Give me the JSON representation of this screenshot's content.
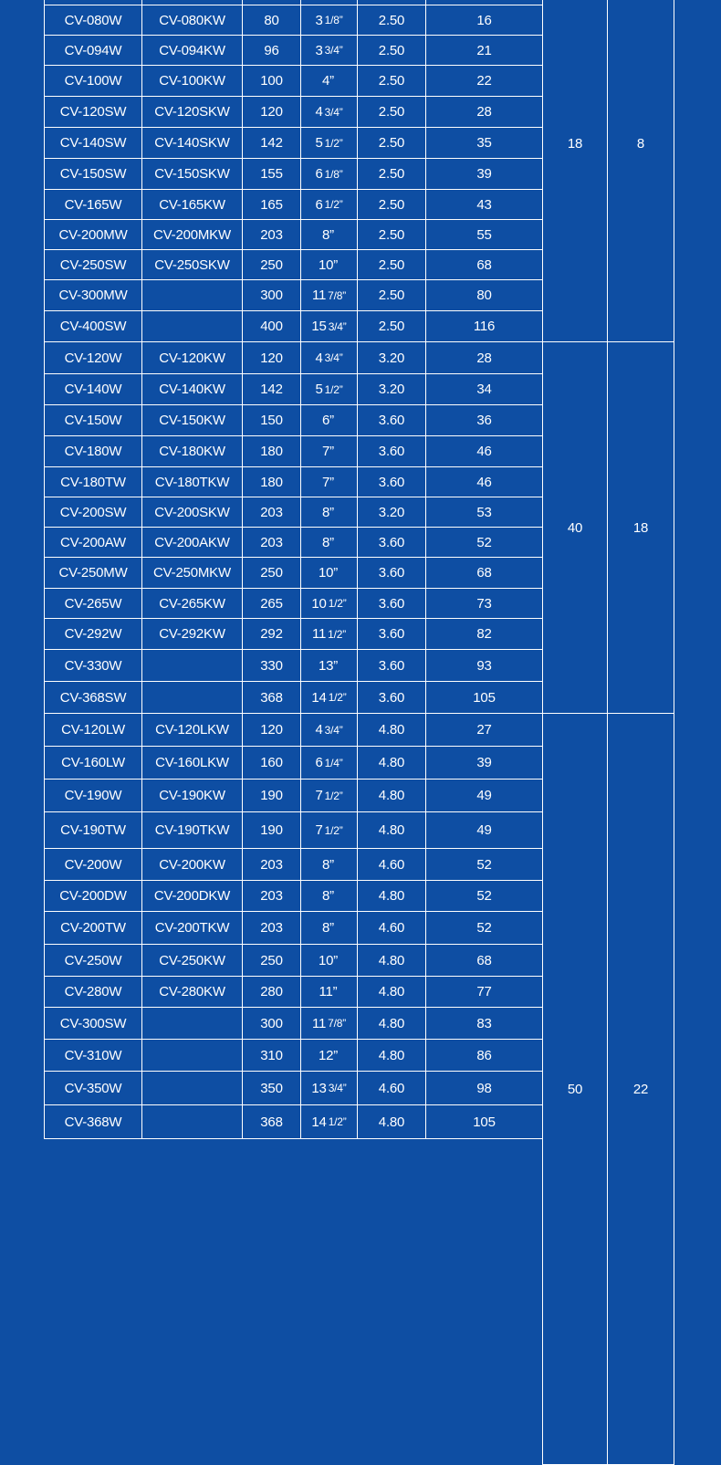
{
  "colors": {
    "background": "#0e4ea3",
    "grid": "#ffffff",
    "text": "#ffffff"
  },
  "groups": [
    {
      "merged_a": "18",
      "merged_b": "8",
      "rows": [
        {
          "model": "CV-080W",
          "model_k": "CV-080KW",
          "mm": "80",
          "inch": "3",
          "frac": "1/8”",
          "thick": "2.50",
          "qty": "16"
        },
        {
          "model": "CV-094W",
          "model_k": "CV-094KW",
          "mm": "96",
          "inch": "3",
          "frac": "3/4”",
          "thick": "2.50",
          "qty": "21"
        },
        {
          "model": "CV-100W",
          "model_k": "CV-100KW",
          "mm": "100",
          "inch": "4”",
          "frac": "",
          "thick": "2.50",
          "qty": "22"
        },
        {
          "model": "CV-120SW",
          "model_k": "CV-120SKW",
          "mm": "120",
          "inch": "4",
          "frac": "3/4”",
          "thick": "2.50",
          "qty": "28"
        },
        {
          "model": "CV-140SW",
          "model_k": "CV-140SKW",
          "mm": "142",
          "inch": "5",
          "frac": "1/2”",
          "thick": "2.50",
          "qty": "35"
        },
        {
          "model": "CV-150SW",
          "model_k": "CV-150SKW",
          "mm": "155",
          "inch": "6",
          "frac": "1/8”",
          "thick": "2.50",
          "qty": "39"
        },
        {
          "model": "CV-165W",
          "model_k": "CV-165KW",
          "mm": "165",
          "inch": "6",
          "frac": "1/2”",
          "thick": "2.50",
          "qty": "43"
        },
        {
          "model": "CV-200MW",
          "model_k": "CV-200MKW",
          "mm": "203",
          "inch": "8”",
          "frac": "",
          "thick": "2.50",
          "qty": "55"
        },
        {
          "model": "CV-250SW",
          "model_k": "CV-250SKW",
          "mm": "250",
          "inch": "10”",
          "frac": "",
          "thick": "2.50",
          "qty": "68"
        },
        {
          "model": "CV-300MW",
          "model_k": "",
          "mm": "300",
          "inch": "11",
          "frac": "7/8”",
          "thick": "2.50",
          "qty": "80"
        },
        {
          "model": "CV-400SW",
          "model_k": "",
          "mm": "400",
          "inch": "15",
          "frac": "3/4”",
          "thick": "2.50",
          "qty": "116"
        }
      ]
    },
    {
      "merged_a": "40",
      "merged_b": "18",
      "rows": [
        {
          "model": "CV-120W",
          "model_k": "CV-120KW",
          "mm": "120",
          "inch": "4",
          "frac": "3/4”",
          "thick": "3.20",
          "qty": "28"
        },
        {
          "model": "CV-140W",
          "model_k": "CV-140KW",
          "mm": "142",
          "inch": "5",
          "frac": "1/2”",
          "thick": "3.20",
          "qty": "34"
        },
        {
          "model": "CV-150W",
          "model_k": "CV-150KW",
          "mm": "150",
          "inch": "6”",
          "frac": "",
          "thick": "3.60",
          "qty": "36"
        },
        {
          "model": "CV-180W",
          "model_k": "CV-180KW",
          "mm": "180",
          "inch": "7”",
          "frac": "",
          "thick": "3.60",
          "qty": "46"
        },
        {
          "model": "CV-180TW",
          "model_k": "CV-180TKW",
          "mm": "180",
          "inch": "7”",
          "frac": "",
          "thick": "3.60",
          "qty": "46"
        },
        {
          "model": "CV-200SW",
          "model_k": "CV-200SKW",
          "mm": "203",
          "inch": "8”",
          "frac": "",
          "thick": "3.20",
          "qty": "53"
        },
        {
          "model": "CV-200AW",
          "model_k": "CV-200AKW",
          "mm": "203",
          "inch": "8”",
          "frac": "",
          "thick": "3.60",
          "qty": "52"
        },
        {
          "model": "CV-250MW",
          "model_k": "CV-250MKW",
          "mm": "250",
          "inch": "10”",
          "frac": "",
          "thick": "3.60",
          "qty": "68"
        },
        {
          "model": "CV-265W",
          "model_k": "CV-265KW",
          "mm": "265",
          "inch": "10",
          "frac": "1/2”",
          "thick": "3.60",
          "qty": "73"
        },
        {
          "model": "CV-292W",
          "model_k": "CV-292KW",
          "mm": "292",
          "inch": "11",
          "frac": "1/2”",
          "thick": "3.60",
          "qty": "82"
        },
        {
          "model": "CV-330W",
          "model_k": "",
          "mm": "330",
          "inch": "13”",
          "frac": "",
          "thick": "3.60",
          "qty": "93"
        },
        {
          "model": "CV-368SW",
          "model_k": "",
          "mm": "368",
          "inch": "14",
          "frac": "1/2”",
          "thick": "3.60",
          "qty": "105"
        }
      ]
    },
    {
      "merged_a": "50",
      "merged_b": "22",
      "rows": [
        {
          "model": "CV-120LW",
          "model_k": "CV-120LKW",
          "mm": "120",
          "inch": "4",
          "frac": "3/4”",
          "thick": "4.80",
          "qty": "27"
        },
        {
          "model": "CV-160LW",
          "model_k": "CV-160LKW",
          "mm": "160",
          "inch": "6",
          "frac": "1/4”",
          "thick": "4.80",
          "qty": "39"
        },
        {
          "model": "CV-190W",
          "model_k": "CV-190KW",
          "mm": "190",
          "inch": "7",
          "frac": "1/2”",
          "thick": "4.80",
          "qty": "49"
        },
        {
          "model": "CV-190TW",
          "model_k": "CV-190TKW",
          "mm": "190",
          "inch": "7",
          "frac": "1/2”",
          "thick": "4.80",
          "qty": "49"
        },
        {
          "model": "CV-200W",
          "model_k": "CV-200KW",
          "mm": "203",
          "inch": "8”",
          "frac": "",
          "thick": "4.60",
          "qty": "52"
        },
        {
          "model": "CV-200DW",
          "model_k": "CV-200DKW",
          "mm": "203",
          "inch": "8”",
          "frac": "",
          "thick": "4.80",
          "qty": "52"
        },
        {
          "model": "CV-200TW",
          "model_k": "CV-200TKW",
          "mm": "203",
          "inch": "8”",
          "frac": "",
          "thick": "4.60",
          "qty": "52"
        },
        {
          "model": "CV-250W",
          "model_k": "CV-250KW",
          "mm": "250",
          "inch": "10”",
          "frac": "",
          "thick": "4.80",
          "qty": "68"
        },
        {
          "model": "CV-280W",
          "model_k": "CV-280KW",
          "mm": "280",
          "inch": "11”",
          "frac": "",
          "thick": "4.80",
          "qty": "77"
        },
        {
          "model": "CV-300SW",
          "model_k": "",
          "mm": "300",
          "inch": "11",
          "frac": "7/8”",
          "thick": "4.80",
          "qty": "83"
        },
        {
          "model": "CV-310W",
          "model_k": "",
          "mm": "310",
          "inch": "12”",
          "frac": "",
          "thick": "4.80",
          "qty": "86"
        },
        {
          "model": "CV-350W",
          "model_k": "",
          "mm": "350",
          "inch": "13",
          "frac": "3/4”",
          "thick": "4.60",
          "qty": "98"
        },
        {
          "model": "CV-368W",
          "model_k": "",
          "mm": "368",
          "inch": "14",
          "frac": "1/2”",
          "thick": "4.80",
          "qty": "105"
        }
      ]
    }
  ]
}
